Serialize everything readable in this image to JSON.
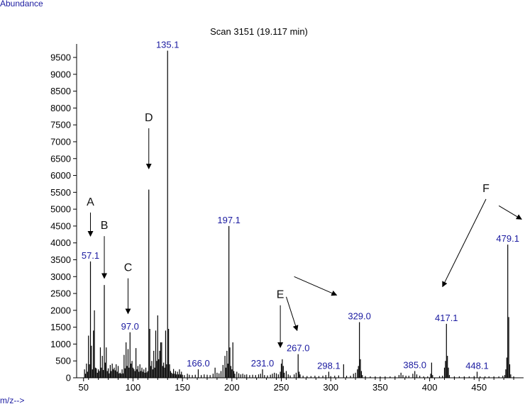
{
  "chart_data": {
    "type": "bar",
    "title": "Scan 3151 (19.117 min)",
    "ylabel": "Abundance",
    "xlabel": "m/z-->",
    "xlim": [
      43,
      495
    ],
    "ylim": [
      0,
      9900
    ],
    "xticks": [
      50,
      100,
      150,
      200,
      250,
      300,
      350,
      400,
      450
    ],
    "yticks": [
      0,
      500,
      1000,
      1500,
      2000,
      2500,
      3000,
      3500,
      4000,
      4500,
      5000,
      5500,
      6000,
      6500,
      7000,
      7500,
      8000,
      8500,
      9000,
      9500
    ],
    "grid": false,
    "peaks": [
      [
        51,
        250
      ],
      [
        52,
        120
      ],
      [
        53,
        420
      ],
      [
        54,
        180
      ],
      [
        55,
        1250
      ],
      [
        56,
        400
      ],
      [
        57,
        3450
      ],
      [
        58,
        950
      ],
      [
        59,
        250
      ],
      [
        60,
        1400
      ],
      [
        61,
        2000
      ],
      [
        62,
        300
      ],
      [
        63,
        280
      ],
      [
        64,
        150
      ],
      [
        65,
        250
      ],
      [
        66,
        200
      ],
      [
        67,
        900
      ],
      [
        68,
        300
      ],
      [
        69,
        650
      ],
      [
        70,
        230
      ],
      [
        71,
        2750
      ],
      [
        72,
        450
      ],
      [
        73,
        900
      ],
      [
        74,
        200
      ],
      [
        75,
        280
      ],
      [
        76,
        130
      ],
      [
        77,
        380
      ],
      [
        78,
        200
      ],
      [
        79,
        420
      ],
      [
        80,
        250
      ],
      [
        81,
        300
      ],
      [
        82,
        220
      ],
      [
        83,
        400
      ],
      [
        84,
        180
      ],
      [
        85,
        350
      ],
      [
        86,
        130
      ],
      [
        87,
        150
      ],
      [
        88,
        120
      ],
      [
        89,
        250
      ],
      [
        90,
        130
      ],
      [
        91,
        680
      ],
      [
        92,
        280
      ],
      [
        93,
        1050
      ],
      [
        94,
        350
      ],
      [
        95,
        850
      ],
      [
        96,
        300
      ],
      [
        97,
        1350
      ],
      [
        98,
        420
      ],
      [
        99,
        500
      ],
      [
        100,
        300
      ],
      [
        101,
        260
      ],
      [
        102,
        200
      ],
      [
        103,
        880
      ],
      [
        104,
        250
      ],
      [
        105,
        350
      ],
      [
        106,
        180
      ],
      [
        107,
        400
      ],
      [
        108,
        200
      ],
      [
        109,
        300
      ],
      [
        110,
        180
      ],
      [
        111,
        250
      ],
      [
        112,
        150
      ],
      [
        113,
        300
      ],
      [
        114,
        160
      ],
      [
        115,
        200
      ],
      [
        116,
        5580
      ],
      [
        117,
        1450
      ],
      [
        118,
        350
      ],
      [
        119,
        500
      ],
      [
        120,
        250
      ],
      [
        121,
        800
      ],
      [
        122,
        300
      ],
      [
        123,
        1400
      ],
      [
        124,
        500
      ],
      [
        125,
        1850
      ],
      [
        126,
        550
      ],
      [
        127,
        800
      ],
      [
        128,
        1050
      ],
      [
        129,
        1050
      ],
      [
        130,
        350
      ],
      [
        131,
        450
      ],
      [
        132,
        300
      ],
      [
        133,
        1400
      ],
      [
        134,
        400
      ],
      [
        135,
        9700
      ],
      [
        136,
        1450
      ],
      [
        137,
        400
      ],
      [
        138,
        200
      ],
      [
        139,
        150
      ],
      [
        140,
        120
      ],
      [
        141,
        260
      ],
      [
        142,
        120
      ],
      [
        143,
        200
      ],
      [
        144,
        100
      ],
      [
        145,
        180
      ],
      [
        146,
        100
      ],
      [
        147,
        250
      ],
      [
        148,
        100
      ],
      [
        149,
        180
      ],
      [
        150,
        90
      ],
      [
        152,
        80
      ],
      [
        155,
        120
      ],
      [
        157,
        90
      ],
      [
        160,
        80
      ],
      [
        163,
        90
      ],
      [
        166,
        250
      ],
      [
        169,
        80
      ],
      [
        172,
        100
      ],
      [
        175,
        90
      ],
      [
        178,
        80
      ],
      [
        181,
        120
      ],
      [
        183,
        300
      ],
      [
        185,
        150
      ],
      [
        187,
        130
      ],
      [
        189,
        200
      ],
      [
        191,
        380
      ],
      [
        193,
        650
      ],
      [
        194,
        300
      ],
      [
        195,
        800
      ],
      [
        196,
        420
      ],
      [
        197,
        4500
      ],
      [
        198,
        900
      ],
      [
        199,
        350
      ],
      [
        200,
        250
      ],
      [
        201,
        1050
      ],
      [
        202,
        200
      ],
      [
        203,
        120
      ],
      [
        205,
        180
      ],
      [
        207,
        130
      ],
      [
        209,
        100
      ],
      [
        211,
        120
      ],
      [
        213,
        90
      ],
      [
        215,
        100
      ],
      [
        218,
        80
      ],
      [
        221,
        90
      ],
      [
        224,
        80
      ],
      [
        227,
        100
      ],
      [
        229,
        120
      ],
      [
        231,
        250
      ],
      [
        233,
        80
      ],
      [
        236,
        70
      ],
      [
        239,
        90
      ],
      [
        241,
        120
      ],
      [
        243,
        150
      ],
      [
        245,
        130
      ],
      [
        247,
        100
      ],
      [
        249,
        180
      ],
      [
        250,
        420
      ],
      [
        251,
        550
      ],
      [
        252,
        350
      ],
      [
        253,
        150
      ],
      [
        255,
        200
      ],
      [
        257,
        100
      ],
      [
        259,
        70
      ],
      [
        263,
        100
      ],
      [
        265,
        150
      ],
      [
        267,
        700
      ],
      [
        268,
        180
      ],
      [
        269,
        100
      ],
      [
        272,
        60
      ],
      [
        276,
        50
      ],
      [
        280,
        50
      ],
      [
        284,
        60
      ],
      [
        288,
        50
      ],
      [
        292,
        60
      ],
      [
        295,
        80
      ],
      [
        298,
        180
      ],
      [
        300,
        50
      ],
      [
        304,
        60
      ],
      [
        308,
        70
      ],
      [
        313,
        400
      ],
      [
        316,
        60
      ],
      [
        320,
        60
      ],
      [
        323,
        120
      ],
      [
        325,
        150
      ],
      [
        327,
        250
      ],
      [
        328,
        350
      ],
      [
        329,
        1650
      ],
      [
        330,
        550
      ],
      [
        331,
        200
      ],
      [
        332,
        80
      ],
      [
        335,
        50
      ],
      [
        340,
        40
      ],
      [
        345,
        40
      ],
      [
        350,
        40
      ],
      [
        355,
        40
      ],
      [
        360,
        40
      ],
      [
        365,
        50
      ],
      [
        369,
        80
      ],
      [
        371,
        150
      ],
      [
        373,
        80
      ],
      [
        376,
        60
      ],
      [
        379,
        60
      ],
      [
        383,
        120
      ],
      [
        385,
        200
      ],
      [
        387,
        100
      ],
      [
        390,
        60
      ],
      [
        394,
        40
      ],
      [
        398,
        40
      ],
      [
        401,
        120
      ],
      [
        402,
        450
      ],
      [
        403,
        80
      ],
      [
        410,
        50
      ],
      [
        413,
        60
      ],
      [
        415,
        300
      ],
      [
        416,
        500
      ],
      [
        417,
        1600
      ],
      [
        418,
        650
      ],
      [
        419,
        300
      ],
      [
        420,
        80
      ],
      [
        425,
        40
      ],
      [
        430,
        40
      ],
      [
        435,
        40
      ],
      [
        440,
        40
      ],
      [
        445,
        50
      ],
      [
        448,
        180
      ],
      [
        451,
        40
      ],
      [
        456,
        40
      ],
      [
        460,
        40
      ],
      [
        465,
        40
      ],
      [
        470,
        40
      ],
      [
        474,
        60
      ],
      [
        476,
        80
      ],
      [
        477,
        250
      ],
      [
        478,
        600
      ],
      [
        479,
        3950
      ],
      [
        480,
        1800
      ],
      [
        481,
        400
      ],
      [
        482,
        100
      ],
      [
        485,
        40
      ]
    ],
    "peak_labels": [
      {
        "mz": 57,
        "text": "57.1",
        "y": 3450
      },
      {
        "mz": 97,
        "text": "97.0",
        "y": 1350
      },
      {
        "mz": 135,
        "text": "135.1",
        "y": 9700
      },
      {
        "mz": 166,
        "text": "166.0",
        "y": 250
      },
      {
        "mz": 197,
        "text": "197.1",
        "y": 4500
      },
      {
        "mz": 231,
        "text": "231.0",
        "y": 250
      },
      {
        "mz": 267,
        "text": "267.0",
        "y": 700
      },
      {
        "mz": 298,
        "text": "298.1",
        "y": 180
      },
      {
        "mz": 329,
        "text": "329.0",
        "y": 1650
      },
      {
        "mz": 385,
        "text": "385.0",
        "y": 200
      },
      {
        "mz": 417,
        "text": "417.1",
        "y": 1600
      },
      {
        "mz": 448,
        "text": "448.1",
        "y": 180
      },
      {
        "mz": 479,
        "text": "479.1",
        "y": 3950
      }
    ],
    "annotations": [
      {
        "text": "A",
        "arrows": [
          [
            57,
            4900,
            57,
            4200
          ]
        ]
      },
      {
        "text": "B",
        "arrows": [
          [
            71,
            4200,
            71,
            2950
          ]
        ]
      },
      {
        "text": "C",
        "arrows": [
          [
            95,
            2950,
            95,
            1900
          ]
        ]
      },
      {
        "text": "D",
        "arrows": [
          [
            116,
            7400,
            116,
            6200
          ]
        ]
      },
      {
        "text": "E",
        "arrows": [
          [
            249,
            2150,
            249,
            900
          ],
          [
            255,
            2400,
            266,
            1400
          ],
          [
            263,
            3000,
            306,
            2450
          ]
        ]
      },
      {
        "text": "F",
        "arrows": [
          [
            457,
            5300,
            413,
            2700
          ],
          [
            470,
            5100,
            493,
            4700
          ]
        ]
      }
    ]
  }
}
